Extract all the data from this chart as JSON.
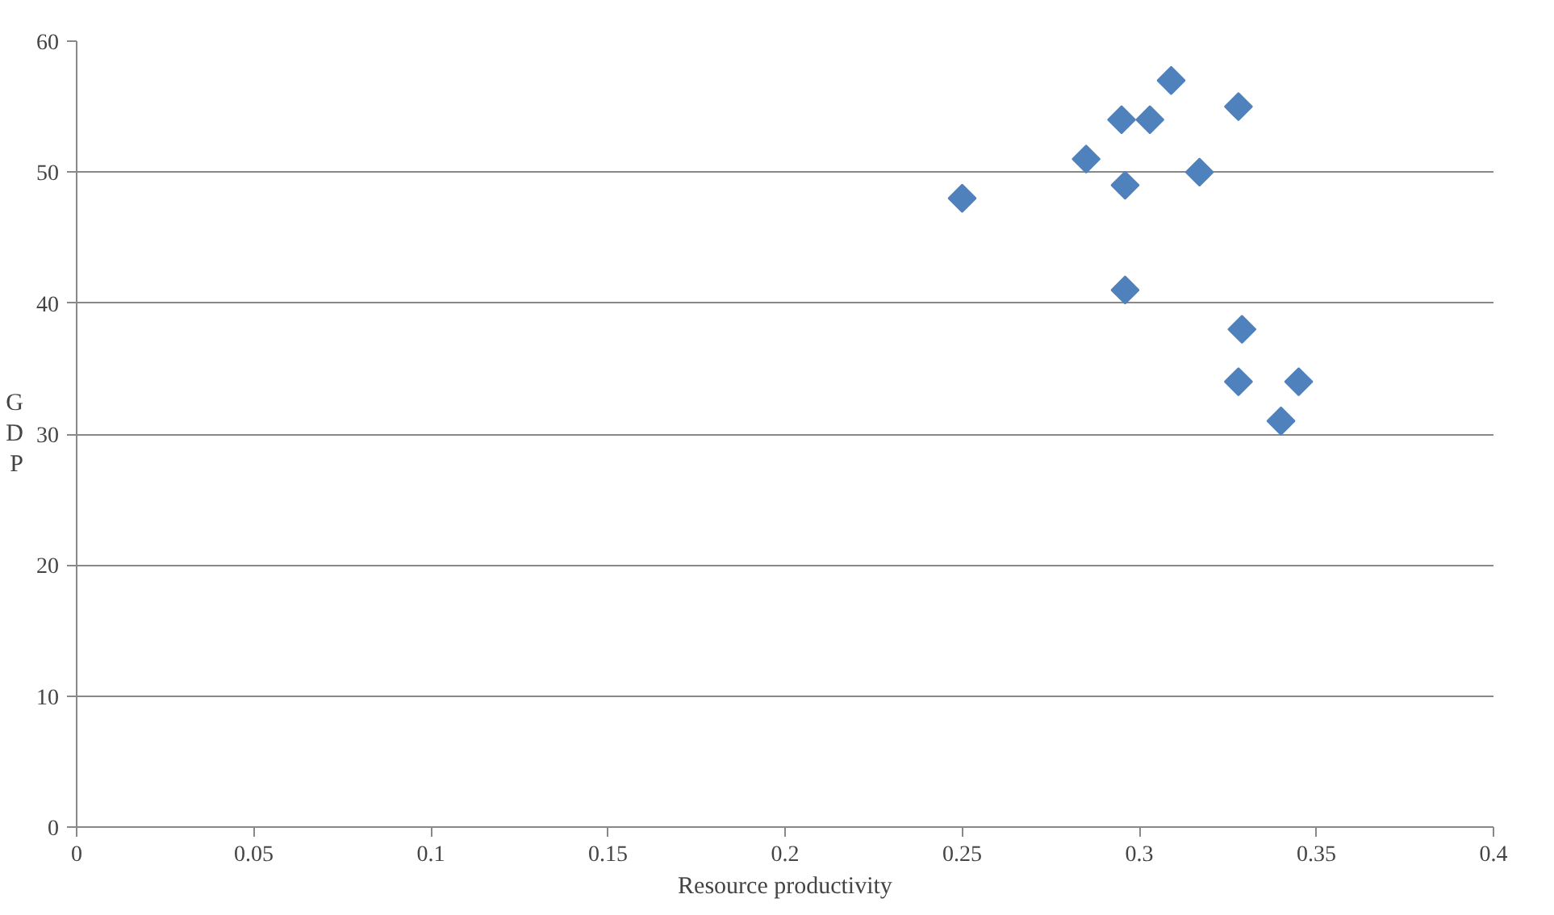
{
  "chart_data": {
    "type": "scatter",
    "xlabel": "Resource productivity",
    "ylabel": "GDP",
    "x": [
      0.25,
      0.285,
      0.295,
      0.303,
      0.309,
      0.328,
      0.296,
      0.317,
      0.296,
      0.329,
      0.328,
      0.345,
      0.34
    ],
    "values": [
      48,
      51,
      54,
      54,
      57,
      55,
      49,
      50,
      41,
      38,
      34,
      34,
      31
    ],
    "color": "#4f81bd",
    "marker": "diamond",
    "xlim": [
      0,
      0.4
    ],
    "xticks": [
      0,
      0.05,
      0.1,
      0.15,
      0.2,
      0.25,
      0.3,
      0.35,
      0.4
    ],
    "ylim": [
      0,
      60
    ],
    "yticks": [
      0,
      10,
      20,
      30,
      40,
      50,
      60
    ],
    "grid": "y"
  }
}
